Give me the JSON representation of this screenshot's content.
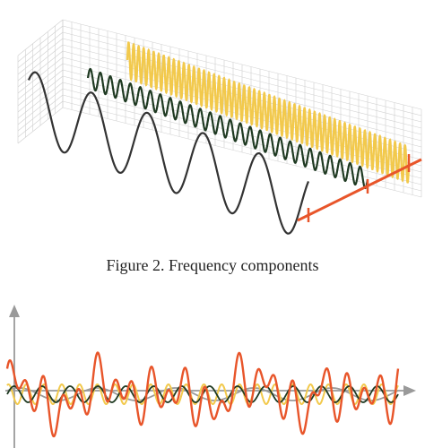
{
  "caption": "Figure 2. Frequency components",
  "colors": {
    "grid": "#cfcfcf",
    "low_frequency_wave": "#333333",
    "mid_frequency_wave": "#1f3a22",
    "high_frequency_wave": "#f2c94c",
    "frequency_axis": "#e8552a",
    "combined_wave": "#e8552a",
    "axes": "#9a9a9a"
  },
  "waves": [
    {
      "name": "low-frequency-wave",
      "cycles": 5
    },
    {
      "name": "mid-frequency-wave",
      "cycles": 28
    },
    {
      "name": "high-frequency-wave",
      "cycles": 56
    }
  ]
}
